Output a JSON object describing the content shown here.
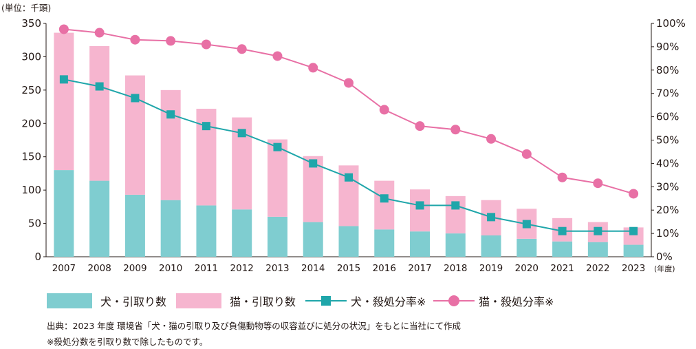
{
  "chart_data": {
    "type": "bar+line",
    "unit_label": "(単位：千頭)",
    "xlabel_unit": "(年度)",
    "categories": [
      "2007",
      "2008",
      "2009",
      "2010",
      "2011",
      "2012",
      "2013",
      "2014",
      "2015",
      "2016",
      "2017",
      "2018",
      "2019",
      "2020",
      "2021",
      "2022",
      "2023"
    ],
    "left_axis": {
      "ylim": [
        0,
        350
      ],
      "ticks": [
        "0",
        "50",
        "100",
        "150",
        "200",
        "250",
        "300",
        "350"
      ]
    },
    "right_axis": {
      "ylim": [
        0,
        100
      ],
      "ticks": [
        "0%",
        "10%",
        "20%",
        "30%",
        "40%",
        "50%",
        "60%",
        "70%",
        "80%",
        "90%",
        "100%"
      ]
    },
    "series": [
      {
        "name": "犬・引取り数",
        "kind": "bar",
        "axis": "left",
        "color": "#7fcdd0",
        "values": [
          130,
          114,
          93,
          85,
          77,
          71,
          60,
          52,
          46,
          41,
          38,
          35,
          32,
          27,
          23,
          22,
          18
        ]
      },
      {
        "name": "猫・引取り数",
        "kind": "bar",
        "axis": "left",
        "color": "#f6b5cf",
        "values": [
          206,
          202,
          179,
          165,
          145,
          138,
          116,
          99,
          91,
          73,
          63,
          56,
          53,
          45,
          35,
          30,
          26
        ]
      },
      {
        "name": "犬・殺処分率※",
        "kind": "line",
        "axis": "right",
        "color": "#1fa6aa",
        "marker": "square",
        "values": [
          76,
          73,
          68,
          61,
          56,
          53,
          47,
          40,
          34,
          25,
          22,
          22,
          17,
          14,
          11,
          11,
          11
        ]
      },
      {
        "name": "猫・殺処分率※",
        "kind": "line",
        "axis": "right",
        "color": "#e870a5",
        "marker": "circle",
        "values": [
          97.5,
          96,
          93,
          92.5,
          91,
          89,
          86,
          81,
          74.5,
          63,
          56,
          54.5,
          50.5,
          44,
          34,
          31.5,
          27
        ]
      }
    ]
  },
  "legend": {
    "dog_intake": "犬・引取り数",
    "cat_intake": "猫・引取り数",
    "dog_rate": "犬・殺処分率※",
    "cat_rate": "猫・殺処分率※"
  },
  "colors": {
    "dog_bar": "#7fcdd0",
    "cat_bar": "#f6b5cf",
    "dog_line": "#1fa6aa",
    "cat_line": "#e870a5",
    "text": "#231815"
  },
  "footnotes": {
    "source": "出典：2023 年度 環境省「犬・猫の引取り及び負傷動物等の収容並びに処分の状況」をもとに当社にて作成",
    "note": "※殺処分数を引取り数で除したものです。"
  }
}
